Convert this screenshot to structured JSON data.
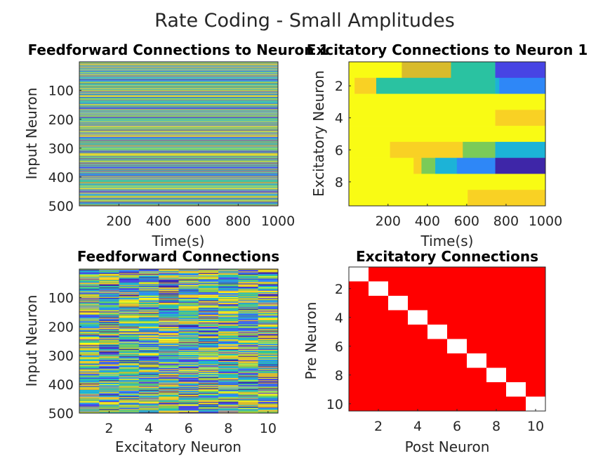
{
  "figure": {
    "suptitle": "Rate Coding - Small Amplitudes"
  },
  "colors": {
    "parula": [
      "#3e26a8",
      "#4744e4",
      "#2e87f7",
      "#1cb3d7",
      "#2ac2a1",
      "#7bcb58",
      "#d8bb2c",
      "#f9d124",
      "#f9fb14"
    ],
    "red": "#ff0000",
    "white": "#ffffff"
  },
  "chart_data": [
    {
      "id": "ff_to_neuron1",
      "type": "heatmap",
      "title": "Feedforward Connections to Neuron 1",
      "xlabel": "Time(s)",
      "ylabel": "Input Neuron",
      "xticks": [
        "200",
        "400",
        "600",
        "800",
        "1000"
      ],
      "yticks": [
        "100",
        "200",
        "300",
        "400",
        "500"
      ],
      "xlim": [
        1,
        1000
      ],
      "ylim": [
        1,
        500
      ],
      "rows": 500,
      "note": "dense noisy stripes; rows nearly constant across time"
    },
    {
      "id": "exc_to_neuron1",
      "type": "heatmap",
      "title": "Excitatory Connections to Neuron 1",
      "xlabel": "Time(s)",
      "ylabel": "Excitatory Neuron",
      "xticks": [
        "200",
        "400",
        "600",
        "800",
        "1000"
      ],
      "yticks": [
        "2",
        "4",
        "6",
        "8"
      ],
      "xlim": [
        1,
        1000
      ],
      "ylim": [
        0.5,
        9.5
      ],
      "segments": [
        {
          "row": 1,
          "x0": 1,
          "x1": 270,
          "c": 8
        },
        {
          "row": 1,
          "x0": 270,
          "x1": 520,
          "c": 6
        },
        {
          "row": 1,
          "x0": 520,
          "x1": 745,
          "c": 4
        },
        {
          "row": 1,
          "x0": 745,
          "x1": 1000,
          "c": 1
        },
        {
          "row": 2,
          "x0": 1,
          "x1": 30,
          "c": 8
        },
        {
          "row": 2,
          "x0": 30,
          "x1": 140,
          "c": 6.5
        },
        {
          "row": 2,
          "x0": 140,
          "x1": 745,
          "c": 4
        },
        {
          "row": 2,
          "x0": 745,
          "x1": 765,
          "c": 3
        },
        {
          "row": 2,
          "x0": 765,
          "x1": 1000,
          "c": 2
        },
        {
          "row": 3,
          "x0": 1,
          "x1": 1000,
          "c": 8
        },
        {
          "row": 4,
          "x0": 1,
          "x1": 745,
          "c": 8
        },
        {
          "row": 4,
          "x0": 745,
          "x1": 1000,
          "c": 7.2
        },
        {
          "row": 5,
          "x0": 1,
          "x1": 1000,
          "c": 8
        },
        {
          "row": 6,
          "x0": 1,
          "x1": 210,
          "c": 8
        },
        {
          "row": 6,
          "x0": 210,
          "x1": 580,
          "c": 6.5
        },
        {
          "row": 6,
          "x0": 580,
          "x1": 745,
          "c": 4.5
        },
        {
          "row": 6,
          "x0": 745,
          "x1": 1000,
          "c": 3
        },
        {
          "row": 7,
          "x0": 1,
          "x1": 330,
          "c": 8
        },
        {
          "row": 7,
          "x0": 330,
          "x1": 370,
          "c": 6.5
        },
        {
          "row": 7,
          "x0": 370,
          "x1": 440,
          "c": 5
        },
        {
          "row": 7,
          "x0": 440,
          "x1": 550,
          "c": 3
        },
        {
          "row": 7,
          "x0": 550,
          "x1": 745,
          "c": 2
        },
        {
          "row": 7,
          "x0": 745,
          "x1": 1000,
          "c": 0.2
        },
        {
          "row": 8,
          "x0": 1,
          "x1": 1000,
          "c": 8
        },
        {
          "row": 9,
          "x0": 1,
          "x1": 605,
          "c": 8
        },
        {
          "row": 9,
          "x0": 605,
          "x1": 1000,
          "c": 6.5
        }
      ]
    },
    {
      "id": "ff_connections",
      "type": "heatmap",
      "title": "Feedforward Connections",
      "xlabel": "Excitatory Neuron",
      "ylabel": "Input Neuron",
      "xticks": [
        "2",
        "4",
        "6",
        "8",
        "10"
      ],
      "yticks": [
        "100",
        "200",
        "300",
        "400",
        "500"
      ],
      "xlim": [
        0.5,
        10.5
      ],
      "ylim": [
        1,
        500
      ],
      "columns": 10,
      "rows": 500
    },
    {
      "id": "exc_connections",
      "type": "heatmap",
      "title": "Excitatory Connections",
      "xlabel": "Post Neuron",
      "ylabel": "Pre Neuron",
      "xticks": [
        "2",
        "4",
        "6",
        "8",
        "10"
      ],
      "yticks": [
        "2",
        "4",
        "6",
        "8",
        "10"
      ],
      "xlim": [
        0.5,
        10.5
      ],
      "ylim": [
        0.5,
        10.5
      ],
      "matrix_desc": "all cells red except white diagonal",
      "size": 10
    }
  ]
}
